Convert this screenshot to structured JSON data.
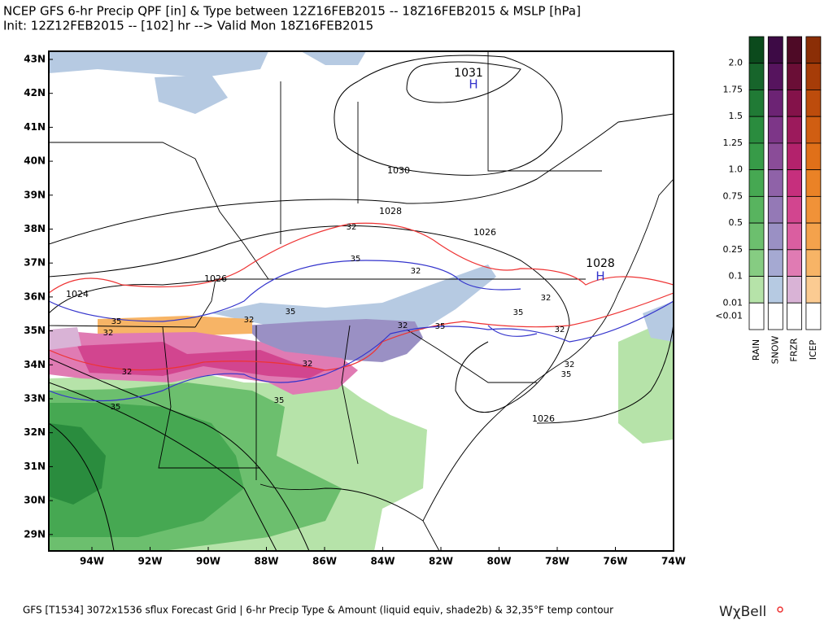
{
  "header": {
    "line1": "NCEP GFS 6-hr Precip QPF [in] & Type between 12Z16FEB2015 -- 18Z16FEB2015 & MSLP [hPa]",
    "line2": "Init: 12Z12FEB2015 -- [102] hr --> Valid Mon 18Z16FEB2015"
  },
  "map": {
    "lat_labels": [
      "43N",
      "42N",
      "41N",
      "40N",
      "39N",
      "38N",
      "37N",
      "36N",
      "35N",
      "34N",
      "33N",
      "32N",
      "31N",
      "30N",
      "29N"
    ],
    "lon_labels": [
      "94W",
      "92W",
      "90W",
      "88W",
      "86W",
      "84W",
      "82W",
      "80W",
      "78W",
      "76W",
      "74W"
    ],
    "pressure_labels": [
      "1031",
      "1030",
      "1028",
      "1026",
      "1026",
      "1024",
      "1028",
      "1026"
    ],
    "highs": [
      "H",
      "H"
    ],
    "temp_labels": [
      "32",
      "32",
      "35",
      "35",
      "35",
      "32",
      "32",
      "32",
      "35",
      "35",
      "32",
      "32",
      "32",
      "35",
      "32",
      "32",
      "35",
      "35"
    ]
  },
  "legend": {
    "levels": [
      "2.0",
      "1.75",
      "1.5",
      "1.25",
      "1.0",
      "0.75",
      "0.5",
      "0.25",
      "0.1",
      "0.01",
      "<0.01"
    ],
    "types": [
      {
        "name": "RAIN",
        "colors": [
          "#0b4a1c",
          "#17652b",
          "#207a35",
          "#2a8c3e",
          "#379b48",
          "#46a852",
          "#58b45f",
          "#6cbf6e",
          "#86cc82",
          "#b6e3a9",
          "#ffffff"
        ]
      },
      {
        "name": "SNOW",
        "colors": [
          "#3d0a45",
          "#56145e",
          "#6c2374",
          "#7d3688",
          "#8a4c98",
          "#8f62a8",
          "#9479b6",
          "#9a90c4",
          "#a5a9d2",
          "#b6cae2",
          "#ffffff"
        ]
      },
      {
        "name": "FRZR",
        "colors": [
          "#4e0a26",
          "#6a0e36",
          "#84124a",
          "#9c1a5c",
          "#b3226c",
          "#c62f7d",
          "#d2458f",
          "#da5ea0",
          "#e07bb3",
          "#d9b3d6",
          "#ffffff"
        ]
      },
      {
        "name": "ICEP",
        "colors": [
          "#8b2e06",
          "#a63c08",
          "#bd4c0c",
          "#d05e12",
          "#e07019",
          "#ea8226",
          "#f09238",
          "#f4a24c",
          "#f7b466",
          "#fbcb92",
          "#ffffff"
        ]
      }
    ]
  },
  "footer": {
    "text": "GFS [T1534] 3072x1536 sflux Forecast Grid | 6-hr Precip Type & Amount (liquid equiv, shade2b) & 32,35°F temp contour",
    "logo": "WχBell"
  }
}
